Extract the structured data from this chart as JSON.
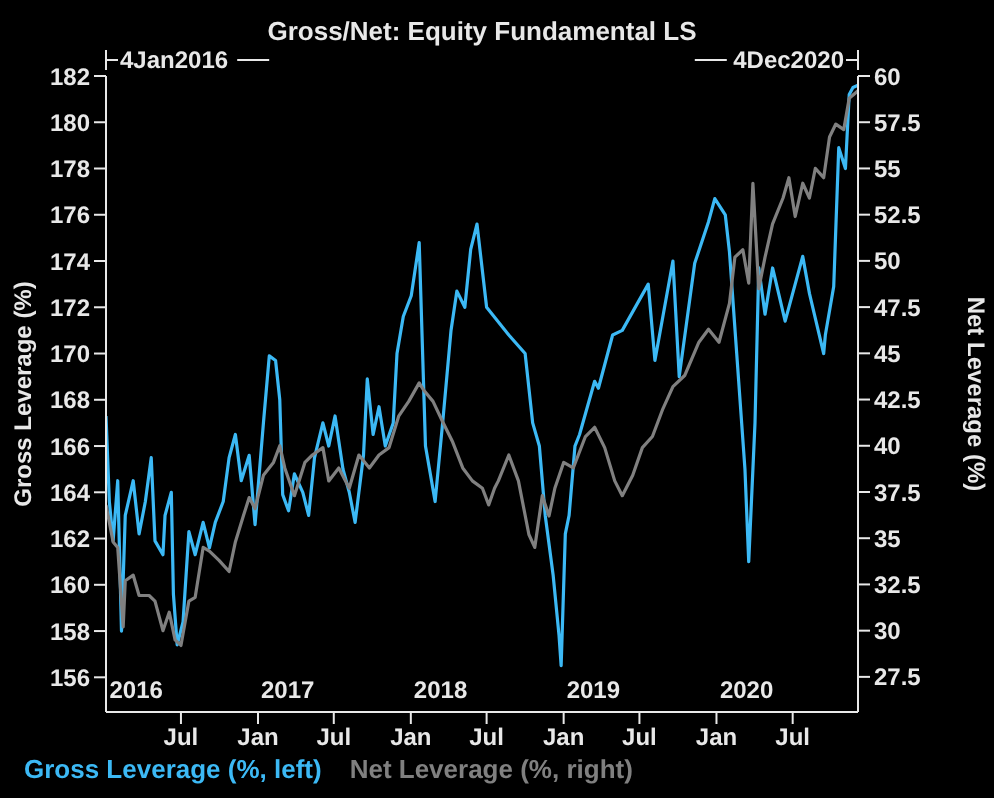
{
  "chart_data": {
    "type": "line",
    "title": "Gross/Net: Equity Fundamental LS",
    "ylabel": "Gross Leverage (%)",
    "y2label": "Net Leverage (%)",
    "xlim": [
      "2016-01-04",
      "2020-12-04"
    ],
    "xticks": [
      {
        "value": "2016-07-01",
        "label": "Jul"
      },
      {
        "value": "2017-01-01",
        "label": "Jan"
      },
      {
        "value": "2017-07-01",
        "label": "Jul"
      },
      {
        "value": "2018-01-01",
        "label": "Jan"
      },
      {
        "value": "2018-07-01",
        "label": "Jul"
      },
      {
        "value": "2019-01-01",
        "label": "Jan"
      },
      {
        "value": "2019-07-01",
        "label": "Jul"
      },
      {
        "value": "2020-01-01",
        "label": "Jan"
      },
      {
        "value": "2020-07-01",
        "label": "Jul"
      }
    ],
    "ylim": [
      154.5,
      182
    ],
    "yticks": [
      156,
      158,
      160,
      162,
      164,
      166,
      168,
      170,
      172,
      174,
      176,
      178,
      180,
      182
    ],
    "y2lim": [
      25.6,
      60
    ],
    "y2ticks": [
      27.5,
      30,
      32.5,
      35,
      37.5,
      40,
      42.5,
      45,
      47.5,
      50,
      52.5,
      55,
      57.5,
      60
    ],
    "legend": "bottom",
    "marker": "none",
    "annotations": [
      "4Jan2016",
      "4Dec2020"
    ],
    "x2lim": [
      "2016-01-04",
      "2020-12-04"
    ],
    "x2ticks": [
      {
        "value": "2016-03-16",
        "label": "2016"
      },
      {
        "value": "2017-03-13",
        "label": "2017"
      },
      {
        "value": "2018-03-13",
        "label": "2018"
      },
      {
        "value": "2019-03-13",
        "label": "2019"
      },
      {
        "value": "2020-03-13",
        "label": "2020"
      }
    ],
    "series": [
      {
        "name": "Gross Leverage (%, left)",
        "color": "#3cb9f5",
        "x": [
          "2016-01-04",
          "2016-01-12",
          "2016-01-21",
          "2016-02-01",
          "2016-02-10",
          "2016-02-19",
          "2016-03-09",
          "2016-03-23",
          "2016-04-07",
          "2016-04-21",
          "2016-04-30",
          "2016-05-19",
          "2016-05-24",
          "2016-06-08",
          "2016-06-13",
          "2016-06-22",
          "2016-07-06",
          "2016-07-20",
          "2016-08-04",
          "2016-08-23",
          "2016-09-07",
          "2016-09-21",
          "2016-10-10",
          "2016-10-24",
          "2016-11-08",
          "2016-11-22",
          "2016-12-11",
          "2016-12-25",
          "2017-01-14",
          "2017-01-28",
          "2017-02-12",
          "2017-02-22",
          "2017-03-01",
          "2017-03-15",
          "2017-03-29",
          "2017-04-18",
          "2017-05-02",
          "2017-05-16",
          "2017-06-05",
          "2017-06-19",
          "2017-07-04",
          "2017-07-23",
          "2017-08-07",
          "2017-08-21",
          "2017-09-10",
          "2017-09-19",
          "2017-10-03",
          "2017-10-17",
          "2017-11-01",
          "2017-11-20",
          "2017-11-29",
          "2017-12-14",
          "2018-01-02",
          "2018-01-21",
          "2018-02-05",
          "2018-02-28",
          "2018-03-18",
          "2018-04-07",
          "2018-04-21",
          "2018-05-10",
          "2018-05-24",
          "2018-06-08",
          "2018-07-01",
          "2018-08-23",
          "2018-10-01",
          "2018-10-19",
          "2018-11-04",
          "2018-11-18",
          "2018-12-07",
          "2018-12-21",
          "2018-12-26",
          "2019-01-05",
          "2019-01-14",
          "2019-01-28",
          "2019-02-08",
          "2019-03-16",
          "2019-03-25",
          "2019-04-28",
          "2019-05-21",
          "2019-07-22",
          "2019-08-07",
          "2019-09-19",
          "2019-10-04",
          "2019-11-10",
          "2019-12-13",
          "2019-12-28",
          "2020-01-22",
          "2020-02-01",
          "2020-03-09",
          "2020-03-18",
          "2020-04-02",
          "2020-04-11",
          "2020-04-26",
          "2020-05-14",
          "2020-06-13",
          "2020-07-25",
          "2020-08-10",
          "2020-09-13",
          "2020-09-17",
          "2020-10-07",
          "2020-10-19",
          "2020-11-04",
          "2020-11-13",
          "2020-11-22",
          "2020-12-04"
        ],
        "values": [
          167.3,
          163.6,
          161.9,
          164.5,
          158,
          163,
          164.5,
          162.2,
          163.6,
          165.5,
          161.9,
          161.3,
          163,
          164,
          159.6,
          157.4,
          158.4,
          162.3,
          161.3,
          162.7,
          161.6,
          162.7,
          163.6,
          165.5,
          166.5,
          164.5,
          165.6,
          162.6,
          167,
          169.9,
          169.7,
          168,
          163.9,
          163.2,
          164.8,
          164,
          163,
          165.5,
          167,
          166,
          167.3,
          165,
          164,
          162.7,
          165.6,
          168.9,
          166.5,
          167.7,
          166,
          167,
          170,
          171.6,
          172.5,
          174.8,
          166,
          163.6,
          167,
          171,
          172.7,
          172,
          174.5,
          175.6,
          172,
          170.8,
          170,
          167,
          166,
          163,
          160.4,
          157.8,
          156.5,
          162.2,
          163,
          166,
          166.5,
          168.8,
          168.5,
          170.8,
          171,
          173,
          169.7,
          174,
          169,
          173.9,
          175.7,
          176.7,
          176,
          174.4,
          165,
          161,
          167,
          173.7,
          171.7,
          173.7,
          171.4,
          174.2,
          172.6,
          170,
          170.8,
          172.9,
          178.9,
          178,
          181.2,
          181.5,
          181.6
        ]
      },
      {
        "name": "Net Leverage (%, right)",
        "color": "#808080",
        "axis": "y2",
        "x": [
          "2016-01-04",
          "2016-01-21",
          "2016-02-01",
          "2016-02-14",
          "2016-02-19",
          "2016-03-09",
          "2016-03-23",
          "2016-04-16",
          "2016-04-30",
          "2016-05-19",
          "2016-06-03",
          "2016-06-17",
          "2016-07-01",
          "2016-07-20",
          "2016-08-04",
          "2016-08-23",
          "2016-09-07",
          "2016-09-30",
          "2016-10-24",
          "2016-11-08",
          "2016-11-27",
          "2016-12-11",
          "2016-12-25",
          "2017-01-14",
          "2017-02-07",
          "2017-02-22",
          "2017-03-06",
          "2017-03-29",
          "2017-04-23",
          "2017-05-11",
          "2017-06-05",
          "2017-06-19",
          "2017-07-13",
          "2017-08-07",
          "2017-08-30",
          "2017-09-24",
          "2017-10-17",
          "2017-11-10",
          "2017-12-03",
          "2017-12-27",
          "2018-01-21",
          "2018-02-01",
          "2018-02-23",
          "2018-03-18",
          "2018-04-11",
          "2018-05-05",
          "2018-05-28",
          "2018-06-21",
          "2018-07-06",
          "2018-07-20",
          "2018-07-29",
          "2018-08-23",
          "2018-09-15",
          "2018-10-10",
          "2018-10-24",
          "2018-11-11",
          "2018-11-27",
          "2018-12-11",
          "2019-01-01",
          "2019-01-24",
          "2019-02-22",
          "2019-03-16",
          "2019-04-09",
          "2019-05-03",
          "2019-05-21",
          "2019-06-15",
          "2019-07-08",
          "2019-08-01",
          "2019-08-26",
          "2019-09-19",
          "2019-10-17",
          "2019-11-20",
          "2019-12-13",
          "2020-01-07",
          "2020-02-01",
          "2020-02-14",
          "2020-03-04",
          "2020-03-18",
          "2020-03-28",
          "2020-04-11",
          "2020-04-26",
          "2020-05-14",
          "2020-06-08",
          "2020-06-22",
          "2020-07-07",
          "2020-07-25",
          "2020-08-10",
          "2020-08-24",
          "2020-09-13",
          "2020-09-27",
          "2020-10-12",
          "2020-10-31",
          "2020-11-13",
          "2020-12-04"
        ],
        "values": [
          36.8,
          34.8,
          34.5,
          30.2,
          32.7,
          33,
          31.9,
          31.9,
          31.6,
          30,
          31,
          29.5,
          29.2,
          31.6,
          31.8,
          34.5,
          34.3,
          33.8,
          33.2,
          34.8,
          36.2,
          37.2,
          36.6,
          38.4,
          39.1,
          40,
          38.8,
          37.3,
          39.1,
          39.5,
          39.9,
          38.1,
          38.8,
          37.7,
          39.5,
          38.8,
          39.5,
          39.9,
          41.6,
          42.4,
          43.4,
          43,
          42.4,
          41.3,
          40.2,
          38.8,
          38.1,
          37.7,
          36.8,
          37.7,
          38.1,
          39.5,
          38.1,
          35.2,
          34.5,
          37.3,
          36.2,
          37.7,
          39.1,
          38.8,
          40.5,
          41,
          39.9,
          38.1,
          37.3,
          38.4,
          39.9,
          40.5,
          42,
          43.2,
          43.8,
          45.6,
          46.3,
          45.6,
          47.7,
          50.2,
          50.6,
          48.8,
          54.2,
          48.5,
          50.2,
          52,
          53.4,
          54.5,
          52.4,
          54.2,
          53.4,
          55,
          54.5,
          56.7,
          57.4,
          57.1,
          58.8,
          59.2
        ]
      }
    ]
  }
}
